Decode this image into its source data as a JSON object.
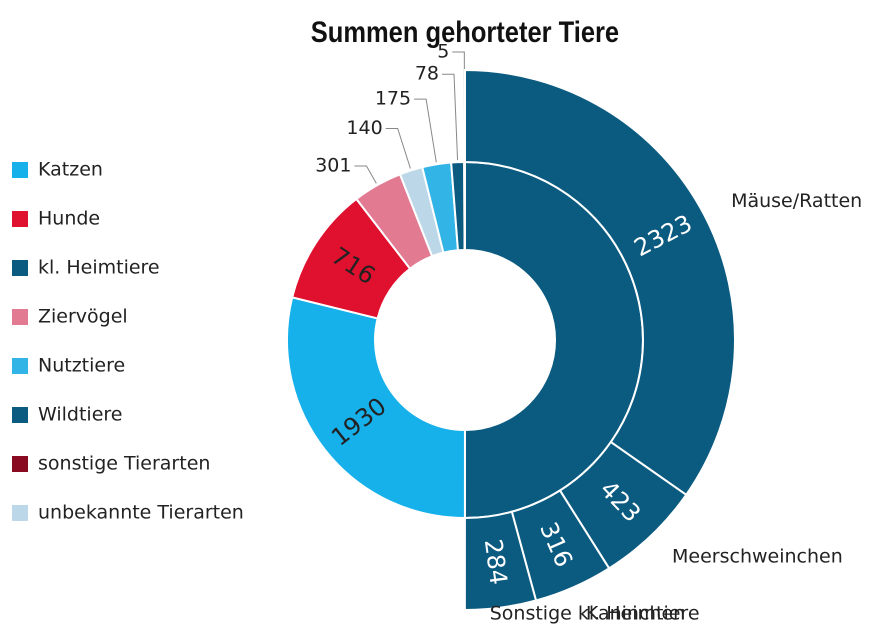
{
  "chart_data": {
    "type": "sunburst",
    "title": "Summen gehorteter Tiere",
    "categories": [
      "kl. Heimtiere",
      "Katzen",
      "Hunde",
      "Ziervögel",
      "unbekannte Tierarten",
      "Nutztiere",
      "Wildtiere",
      "sonstige Tierarten"
    ],
    "values": [
      3346,
      1930,
      716,
      301,
      140,
      175,
      78,
      5
    ],
    "colors": [
      "#0b5a80",
      "#16b0ea",
      "#e0102f",
      "#e27b92",
      "#bcd8e8",
      "#33b4e6",
      "#0b5a80",
      "#8a0a22"
    ],
    "legend": [
      "Katzen",
      "Hunde",
      "kl. Heimtiere",
      "Ziervögel",
      "Nutztiere",
      "Wildtiere",
      "sonstige Tierarten",
      "unbekannte Tierarten"
    ],
    "children": {
      "parent": "kl. Heimtiere",
      "color": "#0b5a80",
      "categories": [
        "Mäuse/Ratten",
        "Meerschweinchen",
        "Kaninchen",
        "Sonstige kl. Heimtiere"
      ],
      "values": [
        2323,
        423,
        316,
        284
      ]
    }
  }
}
